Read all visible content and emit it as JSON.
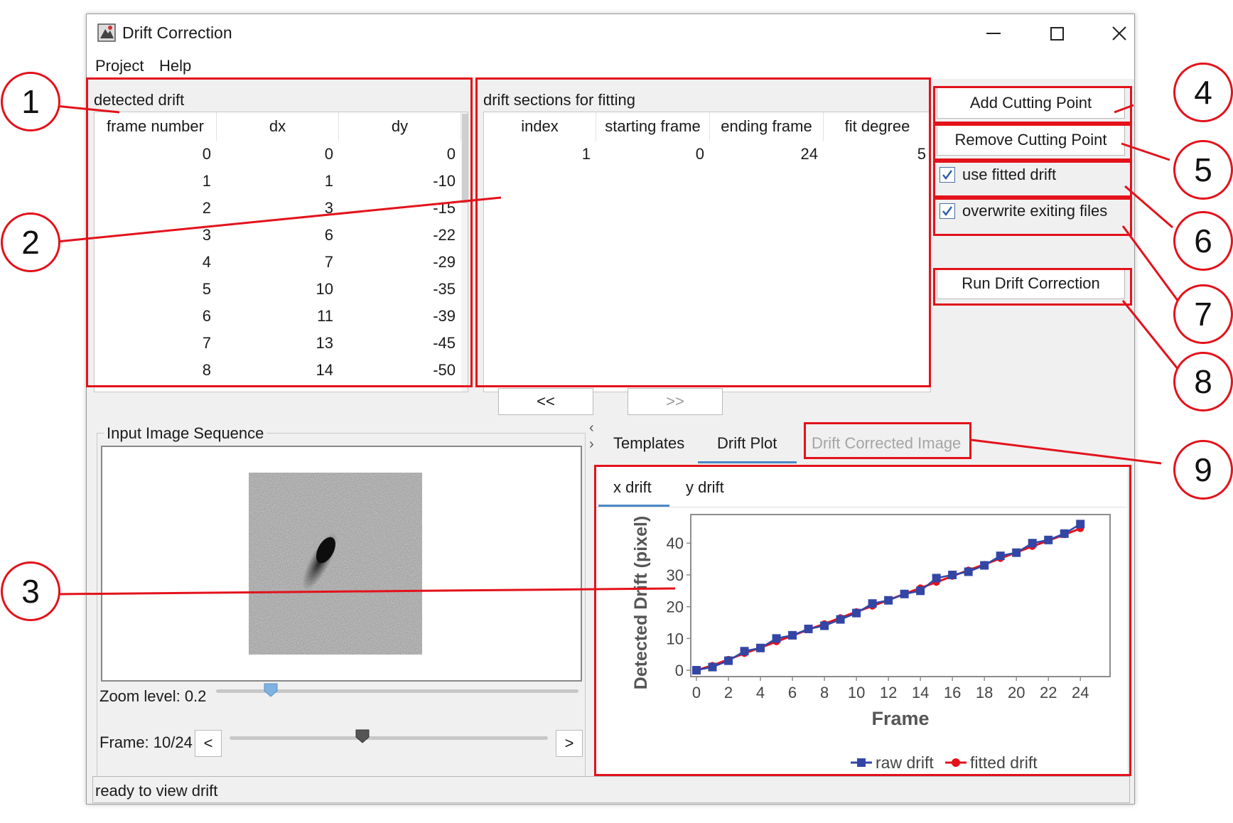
{
  "window": {
    "title": "Drift Correction",
    "controls": [
      "minimize-icon",
      "maximize-icon",
      "close-icon"
    ]
  },
  "menu": [
    "Project",
    "Help"
  ],
  "detected_drift": {
    "title": "detected drift",
    "columns": [
      "frame number",
      "dx",
      "dy"
    ],
    "rows": [
      [
        "0",
        "0",
        "0"
      ],
      [
        "1",
        "1",
        "-10"
      ],
      [
        "2",
        "3",
        "-15"
      ],
      [
        "3",
        "6",
        "-22"
      ],
      [
        "4",
        "7",
        "-29"
      ],
      [
        "5",
        "10",
        "-35"
      ],
      [
        "6",
        "11",
        "-39"
      ],
      [
        "7",
        "13",
        "-45"
      ],
      [
        "8",
        "14",
        "-50"
      ]
    ]
  },
  "drift_sections": {
    "title": "drift sections for fitting",
    "columns": [
      "index",
      "starting frame",
      "ending frame",
      "fit degree"
    ],
    "rows": [
      [
        "1",
        "0",
        "24",
        "5"
      ]
    ]
  },
  "buttons": {
    "add_cutting_point": "Add Cutting Point",
    "remove_cutting_point": "Remove Cutting Point",
    "run_drift_correction": "Run Drift Correction",
    "prev": "<<",
    "next": ">>",
    "frame_prev": "<",
    "frame_next": ">"
  },
  "checkboxes": {
    "use_fitted_drift": {
      "label": "use fitted drift",
      "checked": true
    },
    "overwrite_existing": {
      "label": "overwrite exiting files",
      "checked": true
    }
  },
  "input_sequence": {
    "title": "Input Image Sequence",
    "zoom_label": "Zoom level: 0.2",
    "zoom_value": 0.2,
    "frame_label": "Frame: 10/24",
    "frame_value": 10,
    "frame_max": 24
  },
  "tabs": {
    "main": [
      "Templates",
      "Drift Plot",
      "Drift Corrected Image"
    ],
    "active_main": "Drift Plot",
    "sub": [
      "x drift",
      "y drift"
    ],
    "active_sub": "x drift"
  },
  "status": "ready to view drift",
  "callouts": [
    "1",
    "2",
    "3",
    "4",
    "5",
    "6",
    "7",
    "8",
    "9"
  ],
  "colors": {
    "annotation": "#e3121b",
    "raw": "#3346a6",
    "fitted": "#e3121b",
    "accent": "#4a88c7"
  },
  "chart_data": {
    "type": "line",
    "xlabel": "Frame",
    "ylabel": "Detected Drift (pixel)",
    "xlim": [
      0,
      25.5
    ],
    "ylim": [
      -2,
      49
    ],
    "xticks": [
      "0",
      "2",
      "4",
      "6",
      "8",
      "10",
      "12",
      "14",
      "16",
      "18",
      "20",
      "22",
      "24"
    ],
    "yticks": [
      "0",
      "10",
      "20",
      "30",
      "40"
    ],
    "legend_position": "bottom",
    "series": [
      {
        "name": "raw drift",
        "color": "#3346a6",
        "marker": "square",
        "x": [
          0,
          1,
          2,
          3,
          4,
          5,
          6,
          7,
          8,
          9,
          10,
          11,
          12,
          13,
          14,
          15,
          16,
          17,
          18,
          19,
          20,
          21,
          22,
          23,
          24
        ],
        "y": [
          0,
          1,
          3,
          6,
          7,
          10,
          11,
          13,
          14,
          16,
          18,
          21,
          22,
          24,
          25,
          29,
          30,
          31,
          33,
          36,
          37,
          40,
          41,
          43,
          46
        ]
      },
      {
        "name": "fitted drift",
        "color": "#e3121b",
        "marker": "circle",
        "x": [
          0,
          1,
          2,
          3,
          4,
          5,
          6,
          7,
          8,
          9,
          10,
          11,
          12,
          13,
          14,
          15,
          16,
          17,
          18,
          19,
          20,
          21,
          22,
          23,
          24
        ],
        "y": [
          0,
          1.5,
          3.4,
          5.3,
          7.1,
          9,
          10.9,
          12.8,
          14.6,
          16.5,
          18.4,
          20.2,
          22.1,
          24,
          25.9,
          27.7,
          29.6,
          31.5,
          33.3,
          35.2,
          37.1,
          39,
          40.8,
          42.7,
          44.6
        ]
      }
    ]
  }
}
